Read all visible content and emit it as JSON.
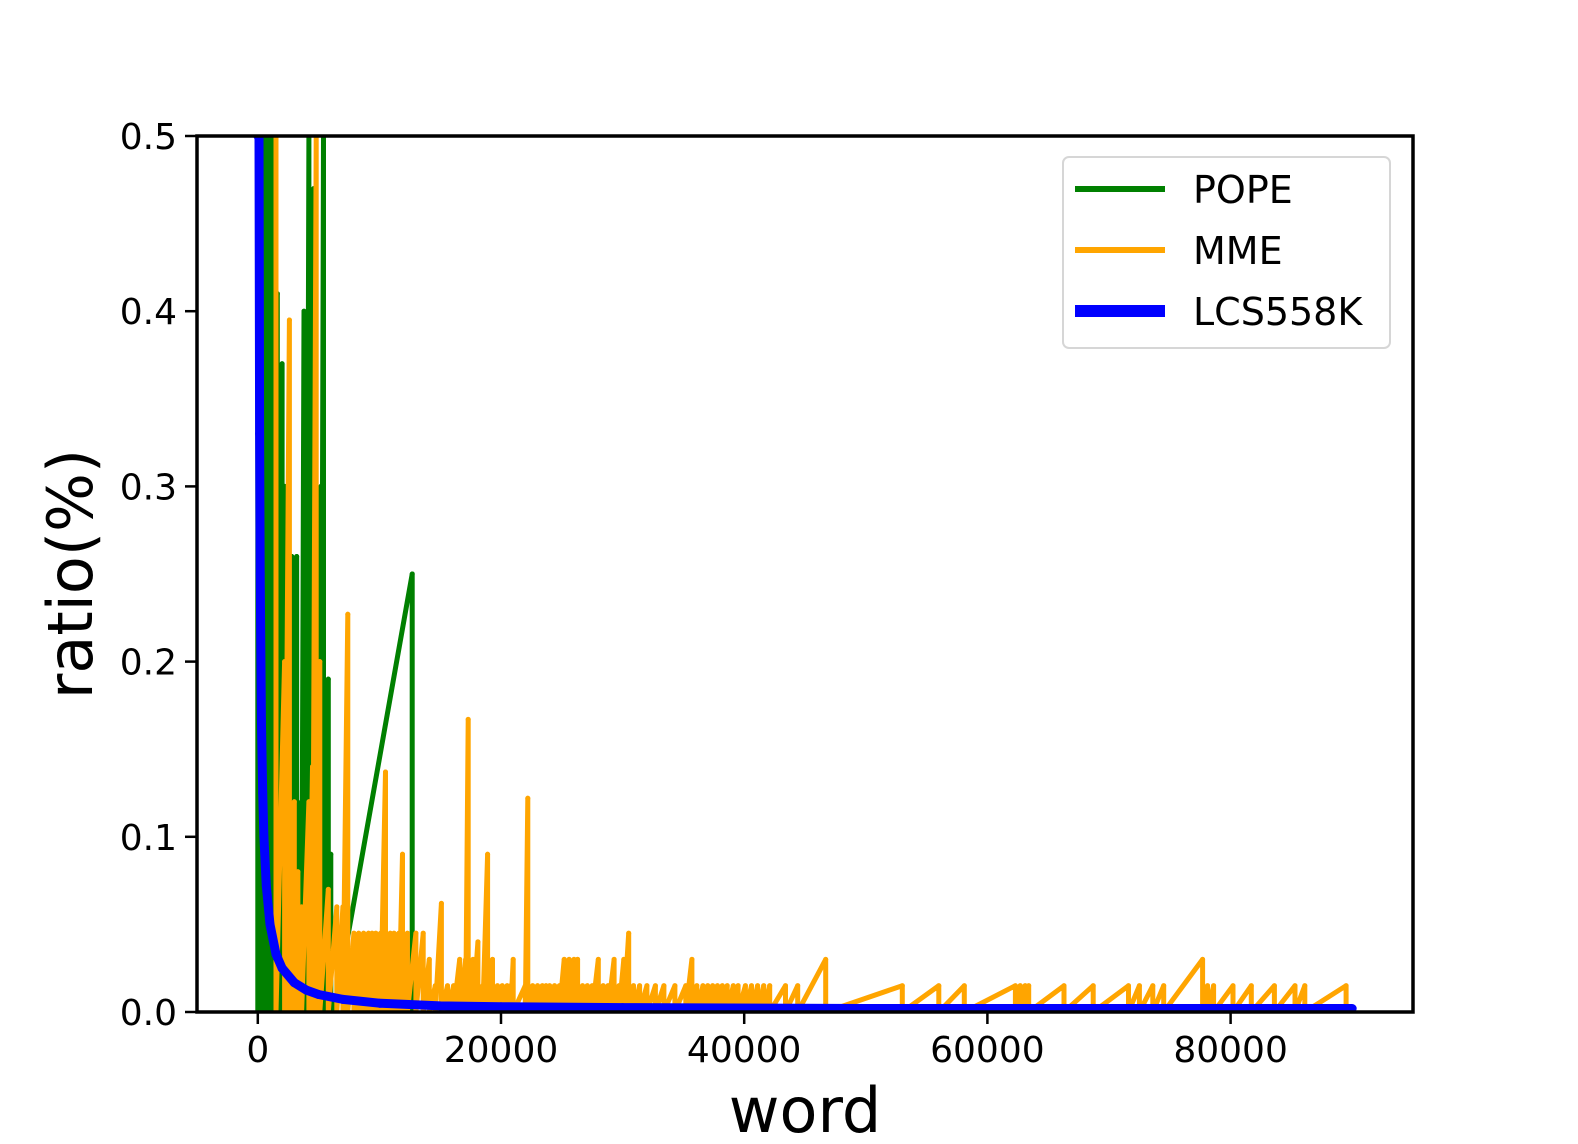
{
  "chart_data": {
    "type": "line",
    "title": "",
    "xlabel": "word",
    "ylabel": "ratio(%)",
    "xlim": [
      -5000,
      95000
    ],
    "ylim": [
      0,
      0.5
    ],
    "x_ticks": [
      0,
      20000,
      40000,
      60000,
      80000
    ],
    "x_tick_labels": [
      "0",
      "20000",
      "40000",
      "60000",
      "80000"
    ],
    "y_ticks": [
      0,
      0.1,
      0.2,
      0.3,
      0.4,
      0.5
    ],
    "y_tick_labels": [
      "0.0",
      "0.1",
      "0.2",
      "0.3",
      "0.4",
      "0.5"
    ],
    "grid": false,
    "legend_position": "top-right",
    "series": [
      {
        "name": "POPE",
        "color": "#008000",
        "style": "spikes",
        "points": [
          [
            0,
            0.5
          ],
          [
            250,
            0.5
          ],
          [
            500,
            0.5
          ],
          [
            750,
            0.5
          ],
          [
            1000,
            0.5
          ],
          [
            1200,
            0.45
          ],
          [
            1400,
            0.5
          ],
          [
            1600,
            0.41
          ],
          [
            1800,
            0.34
          ],
          [
            2000,
            0.37
          ],
          [
            2200,
            0.3
          ],
          [
            2400,
            0.25
          ],
          [
            2600,
            0.2
          ],
          [
            2800,
            0.26
          ],
          [
            3000,
            0.18
          ],
          [
            3200,
            0.26
          ],
          [
            3400,
            0.05
          ],
          [
            3600,
            0.12
          ],
          [
            3800,
            0.4
          ],
          [
            4000,
            0.37
          ],
          [
            4200,
            0.5
          ],
          [
            4400,
            0.3
          ],
          [
            4600,
            0.47
          ],
          [
            4800,
            0.2
          ],
          [
            5000,
            0.14
          ],
          [
            5200,
            0.3
          ],
          [
            5400,
            0.5
          ],
          [
            5600,
            0.08
          ],
          [
            5800,
            0.19
          ],
          [
            6000,
            0.09
          ],
          [
            6300,
            0.005
          ],
          [
            12700,
            0.25
          ]
        ]
      },
      {
        "name": "MME",
        "color": "#FFA500",
        "style": "spikes",
        "points": [
          [
            1500,
            0.5
          ],
          [
            2200,
            0.2
          ],
          [
            2600,
            0.395
          ],
          [
            3000,
            0.12
          ],
          [
            3300,
            0.08
          ],
          [
            3600,
            0.06
          ],
          [
            4200,
            0.12
          ],
          [
            4500,
            0.14
          ],
          [
            4800,
            0.5
          ],
          [
            5100,
            0.2
          ],
          [
            5800,
            0.07
          ],
          [
            6500,
            0.06
          ],
          [
            7000,
            0.06
          ],
          [
            7400,
            0.227
          ],
          [
            7900,
            0.045
          ],
          [
            8300,
            0.045
          ],
          [
            8700,
            0.045
          ],
          [
            9100,
            0.045
          ],
          [
            9400,
            0.045
          ],
          [
            9700,
            0.045
          ],
          [
            10100,
            0.045
          ],
          [
            10500,
            0.137
          ],
          [
            10900,
            0.045
          ],
          [
            11200,
            0.045
          ],
          [
            11600,
            0.045
          ],
          [
            11900,
            0.09
          ],
          [
            12300,
            0.045
          ],
          [
            13000,
            0.045
          ],
          [
            13600,
            0.045
          ],
          [
            14100,
            0.03
          ],
          [
            14600,
            0.015
          ],
          [
            15100,
            0.062
          ],
          [
            15600,
            0.015
          ],
          [
            16100,
            0.015
          ],
          [
            16600,
            0.03
          ],
          [
            17100,
            0.03
          ],
          [
            17300,
            0.167
          ],
          [
            17700,
            0.03
          ],
          [
            18100,
            0.04
          ],
          [
            18500,
            0.015
          ],
          [
            18900,
            0.09
          ],
          [
            19300,
            0.03
          ],
          [
            19700,
            0.015
          ],
          [
            20100,
            0.015
          ],
          [
            20500,
            0.015
          ],
          [
            20800,
            0.015
          ],
          [
            21000,
            0.03
          ],
          [
            22000,
            0.015
          ],
          [
            22200,
            0.122
          ],
          [
            22600,
            0.015
          ],
          [
            23000,
            0.015
          ],
          [
            23400,
            0.015
          ],
          [
            23700,
            0.015
          ],
          [
            24000,
            0.015
          ],
          [
            24400,
            0.015
          ],
          [
            24800,
            0.015
          ],
          [
            25200,
            0.03
          ],
          [
            25600,
            0.03
          ],
          [
            26000,
            0.03
          ],
          [
            26300,
            0.03
          ],
          [
            26700,
            0.015
          ],
          [
            27100,
            0.015
          ],
          [
            27500,
            0.015
          ],
          [
            28000,
            0.03
          ],
          [
            28400,
            0.015
          ],
          [
            28800,
            0.015
          ],
          [
            29300,
            0.03
          ],
          [
            29700,
            0.015
          ],
          [
            30100,
            0.03
          ],
          [
            30500,
            0.045
          ],
          [
            30900,
            0.015
          ],
          [
            31400,
            0.015
          ],
          [
            32000,
            0.015
          ],
          [
            32700,
            0.015
          ],
          [
            33400,
            0.015
          ],
          [
            34300,
            0.015
          ],
          [
            35200,
            0.015
          ],
          [
            35700,
            0.03
          ],
          [
            36100,
            0.015
          ],
          [
            36600,
            0.015
          ],
          [
            37000,
            0.015
          ],
          [
            37400,
            0.015
          ],
          [
            37800,
            0.015
          ],
          [
            38200,
            0.015
          ],
          [
            38600,
            0.015
          ],
          [
            39100,
            0.015
          ],
          [
            39500,
            0.015
          ],
          [
            40100,
            0.015
          ],
          [
            40600,
            0.015
          ],
          [
            41100,
            0.015
          ],
          [
            41600,
            0.015
          ],
          [
            42100,
            0.015
          ],
          [
            43400,
            0.015
          ],
          [
            44400,
            0.015
          ],
          [
            46700,
            0.03
          ],
          [
            53000,
            0.015
          ],
          [
            56000,
            0.015
          ],
          [
            58100,
            0.015
          ],
          [
            62300,
            0.015
          ],
          [
            62700,
            0.015
          ],
          [
            63100,
            0.015
          ],
          [
            63400,
            0.015
          ],
          [
            66300,
            0.015
          ],
          [
            68700,
            0.015
          ],
          [
            71600,
            0.015
          ],
          [
            72500,
            0.015
          ],
          [
            73600,
            0.015
          ],
          [
            74500,
            0.015
          ],
          [
            77700,
            0.03
          ],
          [
            78100,
            0.015
          ],
          [
            78600,
            0.015
          ],
          [
            80200,
            0.015
          ],
          [
            81700,
            0.015
          ],
          [
            83600,
            0.015
          ],
          [
            85300,
            0.015
          ],
          [
            86100,
            0.015
          ],
          [
            89500,
            0.015
          ]
        ]
      },
      {
        "name": "LCS558K",
        "color": "#0000FF",
        "style": "curve",
        "points": [
          [
            0,
            0.5
          ],
          [
            100,
            0.5
          ],
          [
            150,
            0.33
          ],
          [
            200,
            0.25
          ],
          [
            300,
            0.167
          ],
          [
            400,
            0.125
          ],
          [
            500,
            0.1
          ],
          [
            700,
            0.072
          ],
          [
            1000,
            0.05
          ],
          [
            1500,
            0.033
          ],
          [
            2000,
            0.025
          ],
          [
            3000,
            0.0167
          ],
          [
            4000,
            0.0125
          ],
          [
            5000,
            0.01
          ],
          [
            7000,
            0.0072
          ],
          [
            10000,
            0.005
          ],
          [
            15000,
            0.0035
          ],
          [
            20000,
            0.003
          ],
          [
            30000,
            0.0025
          ],
          [
            50000,
            0.002
          ],
          [
            70000,
            0.002
          ],
          [
            90000,
            0.002
          ]
        ]
      }
    ]
  }
}
